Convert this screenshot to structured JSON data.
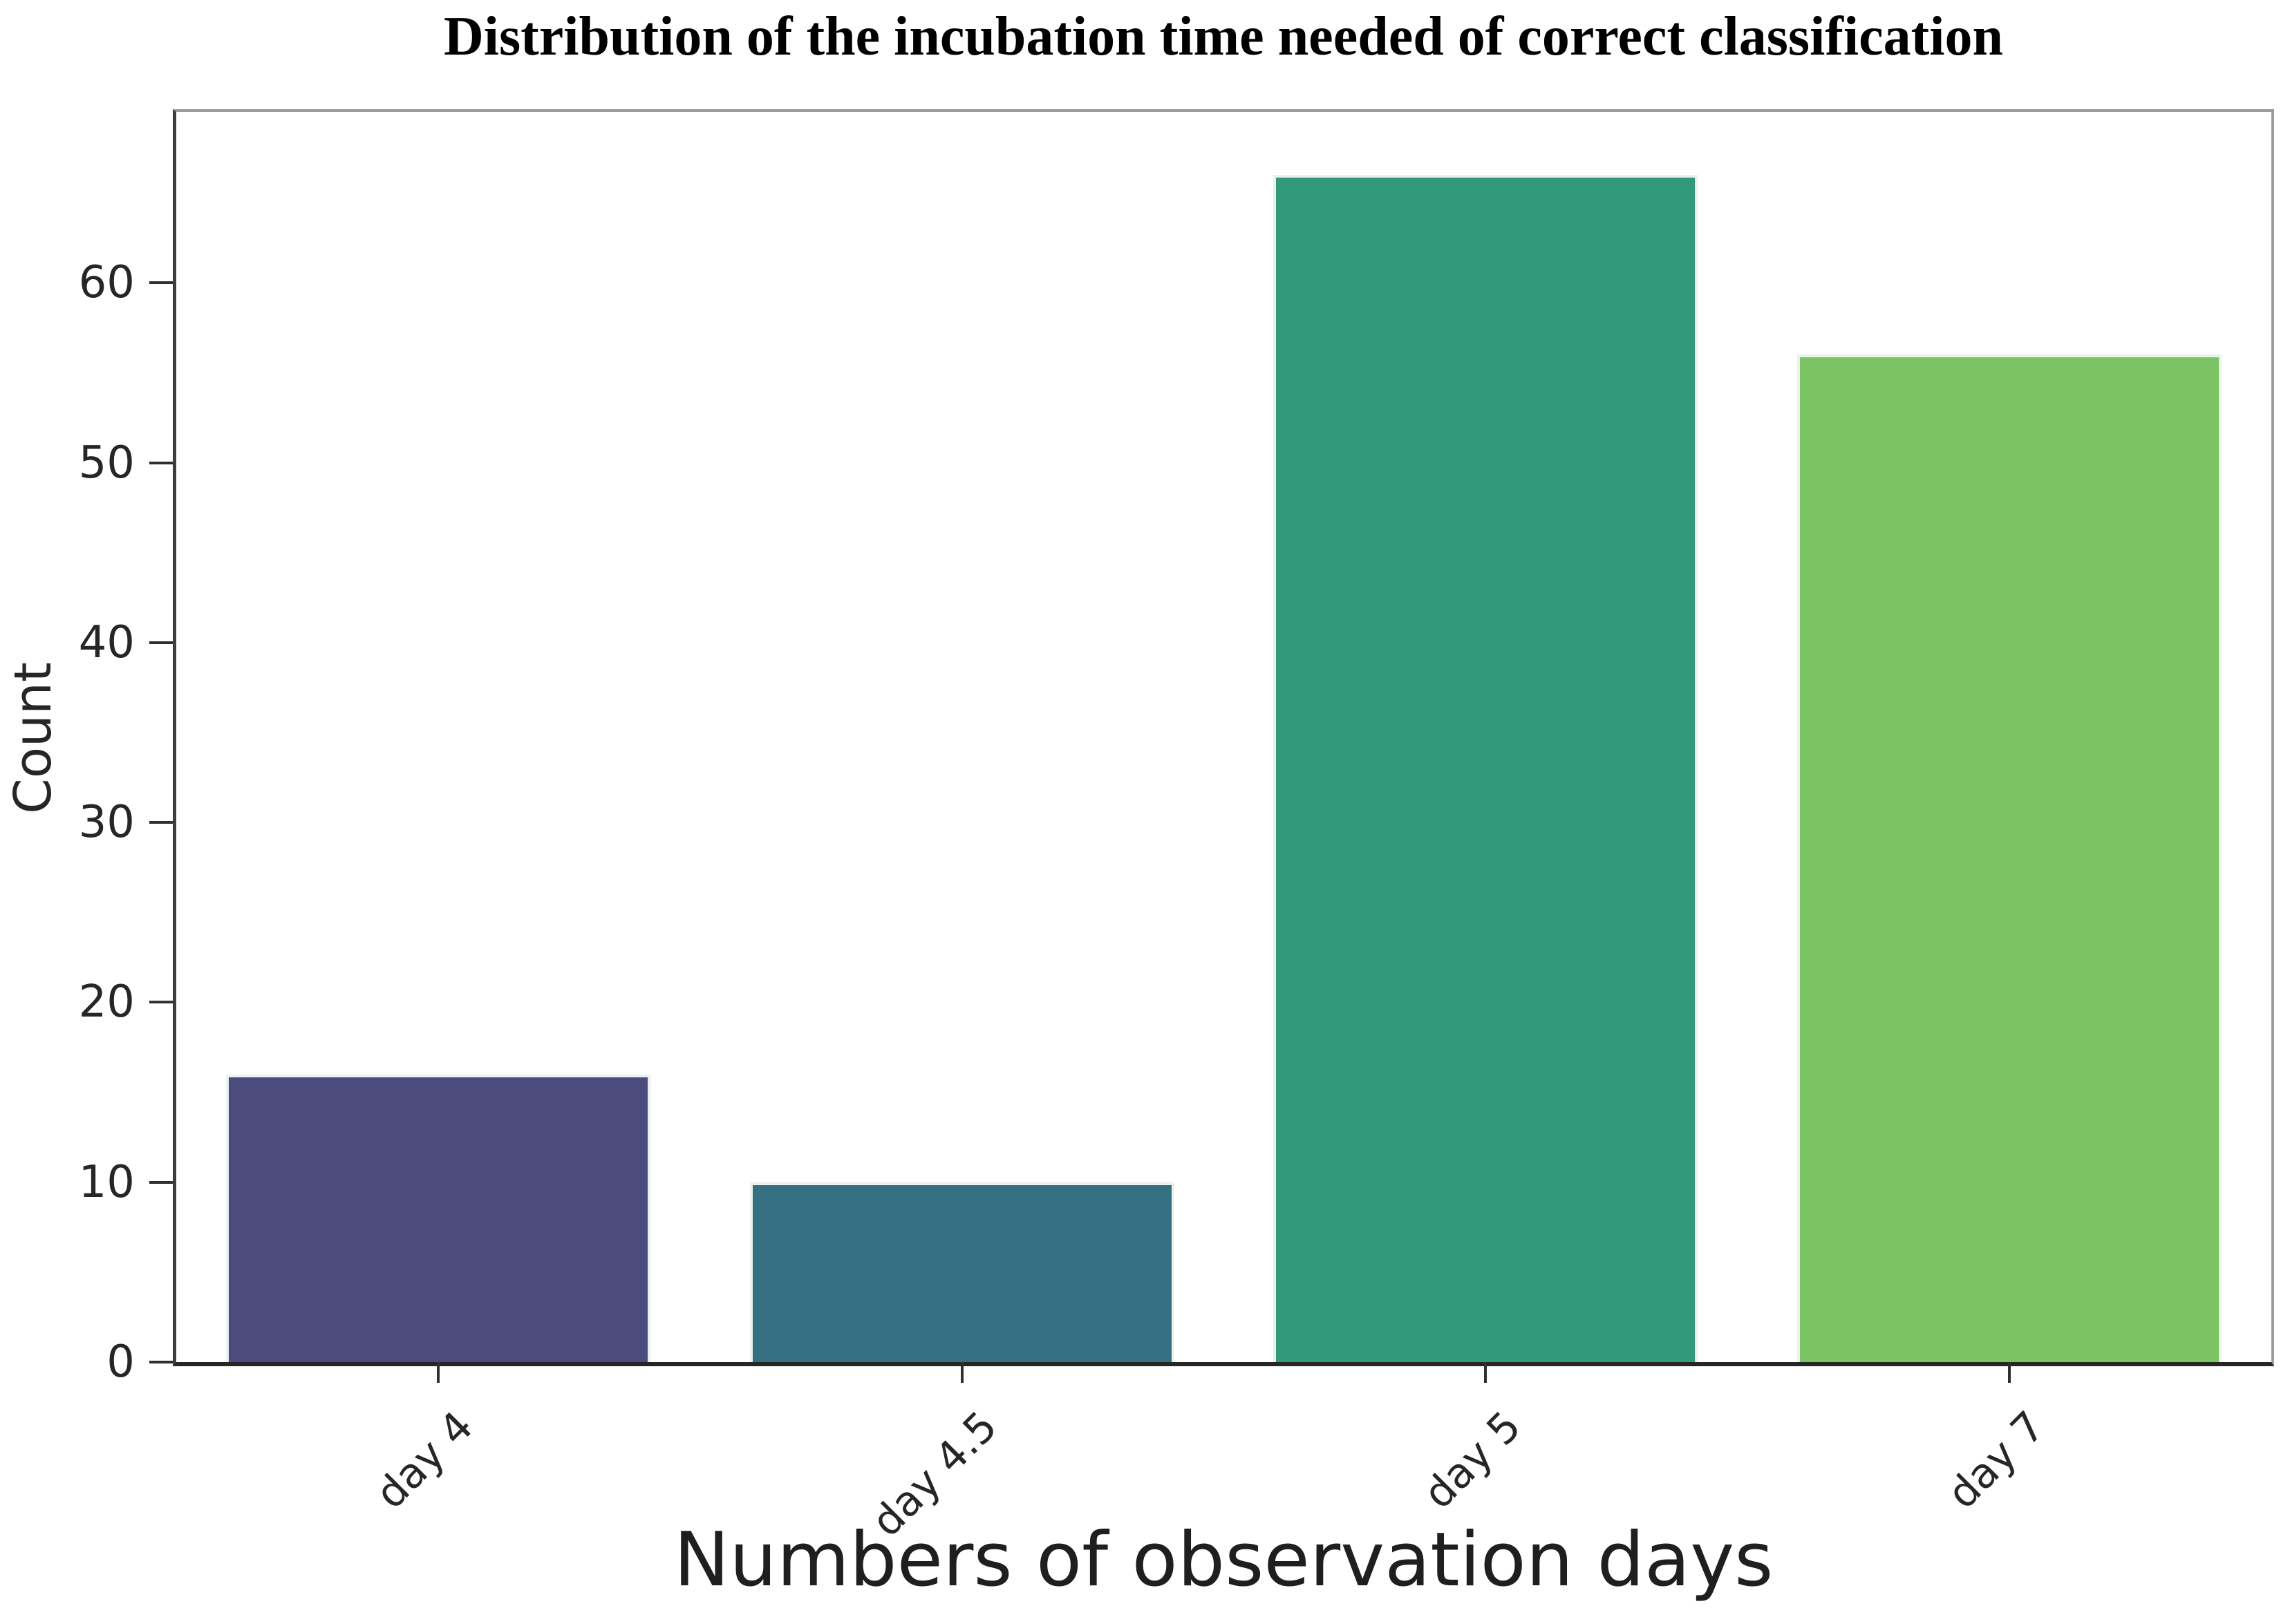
{
  "title": "Distribution of the incubation time needed of correct classification",
  "chart_data": {
    "type": "bar",
    "categories": [
      "day 4",
      "day 4.5",
      "day 5",
      "day 7"
    ],
    "values": [
      16,
      10,
      66,
      56
    ],
    "title": "Distribution of the incubation time needed of correct classification",
    "xlabel": "Numbers of observation days",
    "ylabel": "Count",
    "ylim": [
      0,
      69.5
    ],
    "yticks": [
      0,
      10,
      20,
      30,
      40,
      50,
      60
    ],
    "bar_colors": [
      "#4B4B7E",
      "#356F82",
      "#32997A",
      "#7CC463"
    ],
    "grid": false,
    "legend": null,
    "xtick_rotation_deg": 45
  }
}
